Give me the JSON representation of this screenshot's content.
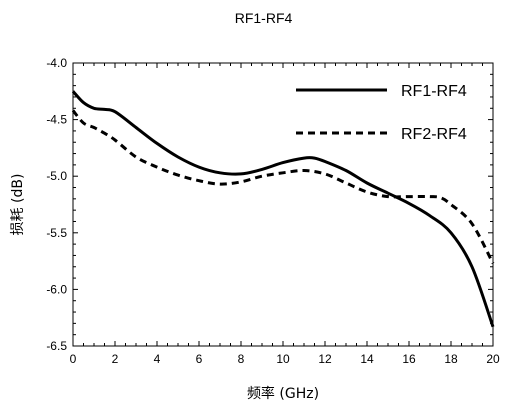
{
  "chart_data": {
    "type": "line",
    "title": "RF1-RF4",
    "xlabel": "频率 (GHz)",
    "ylabel": "损耗 (dB)",
    "xlim": [
      0,
      20
    ],
    "ylim": [
      -6.5,
      -4.0
    ],
    "xticks": [
      0,
      2,
      4,
      6,
      8,
      10,
      12,
      14,
      16,
      18,
      20
    ],
    "yticks": [
      -4.0,
      -4.5,
      -5.0,
      -5.5,
      -6.0,
      -6.5
    ],
    "xtick_labels": [
      "0",
      "2",
      "4",
      "6",
      "8",
      "10",
      "12",
      "14",
      "16",
      "18",
      "20"
    ],
    "ytick_labels": [
      "-4.0",
      "-4.5",
      "-5.0",
      "-5.5",
      "-6.0",
      "-6.5"
    ],
    "grid": false,
    "legend_position": "top-right",
    "series": [
      {
        "name": "RF1-RF4",
        "style": "solid",
        "color": "#000000",
        "x": [
          0,
          0.5,
          1,
          1.5,
          2,
          3,
          4,
          5,
          6,
          7,
          8,
          9,
          10,
          11,
          11.5,
          12,
          13,
          14,
          15,
          16,
          17,
          18,
          19,
          20
        ],
        "y": [
          -4.25,
          -4.35,
          -4.4,
          -4.41,
          -4.43,
          -4.57,
          -4.71,
          -4.83,
          -4.92,
          -4.97,
          -4.98,
          -4.94,
          -4.88,
          -4.84,
          -4.84,
          -4.87,
          -4.95,
          -5.06,
          -5.15,
          -5.24,
          -5.35,
          -5.5,
          -5.8,
          -6.33
        ]
      },
      {
        "name": "RF2-RF4",
        "style": "dashed",
        "color": "#000000",
        "x": [
          0,
          0.5,
          1,
          1.5,
          2,
          3,
          4,
          5,
          6,
          7,
          8,
          9,
          10,
          11,
          12,
          13,
          14,
          15,
          16,
          17,
          17.5,
          18,
          19,
          20
        ],
        "y": [
          -4.42,
          -4.53,
          -4.57,
          -4.62,
          -4.68,
          -4.83,
          -4.92,
          -4.99,
          -5.04,
          -5.07,
          -5.05,
          -5.0,
          -4.97,
          -4.95,
          -4.98,
          -5.06,
          -5.14,
          -5.18,
          -5.18,
          -5.18,
          -5.19,
          -5.25,
          -5.42,
          -5.77
        ]
      }
    ]
  }
}
